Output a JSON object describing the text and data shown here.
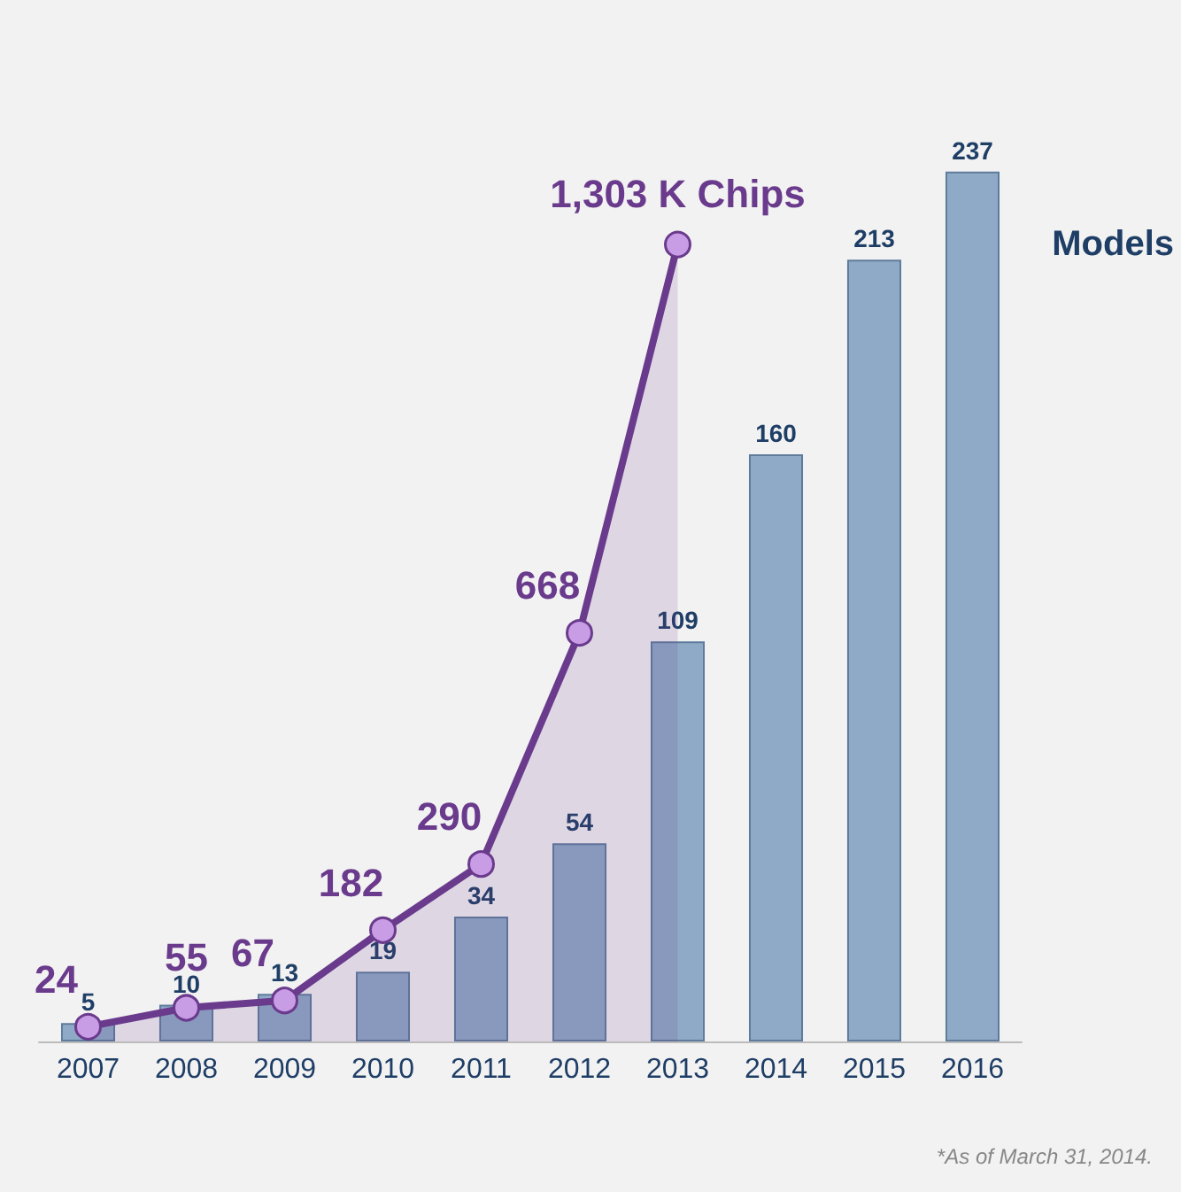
{
  "chart_data": {
    "type": "bar",
    "categories": [
      "2007",
      "2008",
      "2009",
      "2010",
      "2011",
      "2012",
      "2013",
      "2014",
      "2015",
      "2016"
    ],
    "series": [
      {
        "name": "Models",
        "color": "#8faac6",
        "values": [
          5,
          10,
          13,
          19,
          34,
          54,
          109,
          160,
          213,
          237
        ],
        "value_labels": [
          "5",
          "10",
          "13",
          "19",
          "34",
          "54",
          "109",
          "160",
          "213",
          "237"
        ]
      },
      {
        "type": "area",
        "axis": "y2",
        "color": "#6a3a8c",
        "values": [
          24,
          55,
          67,
          182,
          290,
          668,
          1303,
          null,
          null,
          null
        ],
        "value_labels": [
          "24",
          "55",
          "67",
          "182",
          "290",
          "668",
          "1,303 K Chips",
          null,
          null,
          null
        ],
        "marker": "circle"
      }
    ],
    "annotations": [
      "*As of March 31, 2014."
    ],
    "legend": false,
    "grid": false
  }
}
